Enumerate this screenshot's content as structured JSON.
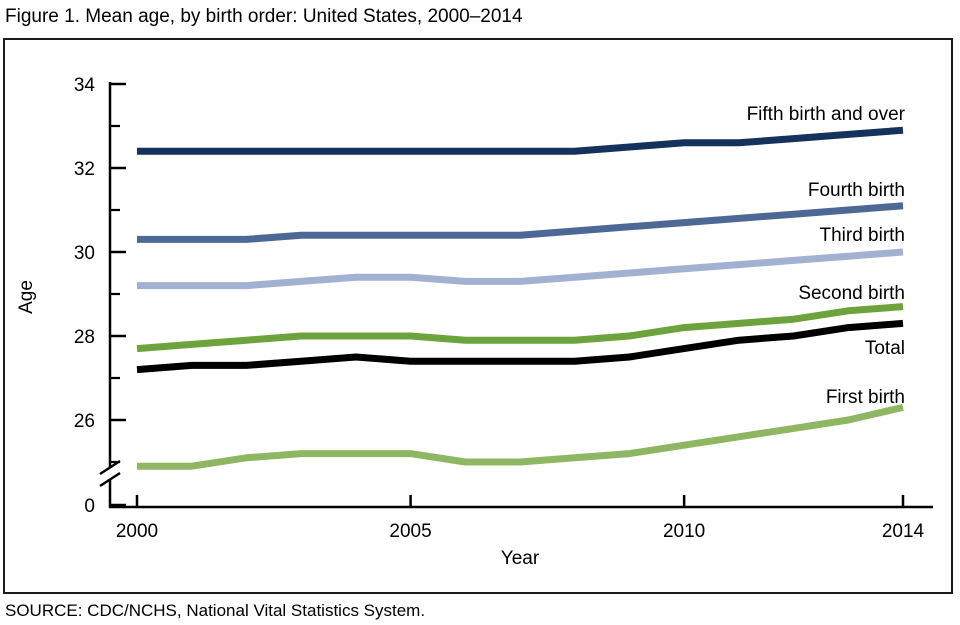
{
  "chart_data": {
    "type": "line",
    "title": "Figure 1. Mean age, by birth order: United States, 2000–2014",
    "xlabel": "Year",
    "ylabel": "Age",
    "source": "SOURCE: CDC/NCHS, National Vital Statistics System.",
    "x": [
      2000,
      2001,
      2002,
      2003,
      2004,
      2005,
      2006,
      2007,
      2008,
      2009,
      2010,
      2011,
      2012,
      2013,
      2014
    ],
    "x_ticks": [
      "2000",
      "2005",
      "2010",
      "2014"
    ],
    "x_tick_years": [
      2000,
      2005,
      2010,
      2014
    ],
    "y_ticks_major": [
      34,
      32,
      30,
      28,
      26
    ],
    "y_ticks_minor": [
      33,
      31,
      29,
      27,
      25
    ],
    "y_zero_label": "0",
    "ylim": [
      24.5,
      34
    ],
    "axis_break": true,
    "grid": false,
    "legend_position": "inline-right",
    "series": [
      {
        "name": "Fifth birth and over",
        "color": "#14325c",
        "values": [
          32.4,
          32.4,
          32.4,
          32.4,
          32.4,
          32.4,
          32.4,
          32.4,
          32.4,
          32.5,
          32.6,
          32.6,
          32.7,
          32.8,
          32.9
        ]
      },
      {
        "name": "Fourth birth",
        "color": "#4e6896",
        "values": [
          30.3,
          30.3,
          30.3,
          30.4,
          30.4,
          30.4,
          30.4,
          30.4,
          30.5,
          30.6,
          30.7,
          30.8,
          30.9,
          31.0,
          31.1
        ]
      },
      {
        "name": "Third birth",
        "color": "#a2b0d1",
        "values": [
          29.2,
          29.2,
          29.2,
          29.3,
          29.4,
          29.4,
          29.3,
          29.3,
          29.4,
          29.5,
          29.6,
          29.7,
          29.8,
          29.9,
          30.0
        ]
      },
      {
        "name": "Second birth",
        "color": "#6da33d",
        "values": [
          27.7,
          27.8,
          27.9,
          28.0,
          28.0,
          28.0,
          27.9,
          27.9,
          27.9,
          28.0,
          28.2,
          28.3,
          28.4,
          28.6,
          28.7
        ]
      },
      {
        "name": "Total",
        "color": "#000000",
        "values": [
          27.2,
          27.3,
          27.3,
          27.4,
          27.5,
          27.4,
          27.4,
          27.4,
          27.4,
          27.5,
          27.7,
          27.9,
          28.0,
          28.2,
          28.3
        ]
      },
      {
        "name": "First birth",
        "color": "#8fb763",
        "values": [
          24.9,
          24.9,
          25.1,
          25.2,
          25.2,
          25.2,
          25.0,
          25.0,
          25.1,
          25.2,
          25.4,
          25.6,
          25.8,
          26.0,
          26.3
        ]
      }
    ]
  }
}
